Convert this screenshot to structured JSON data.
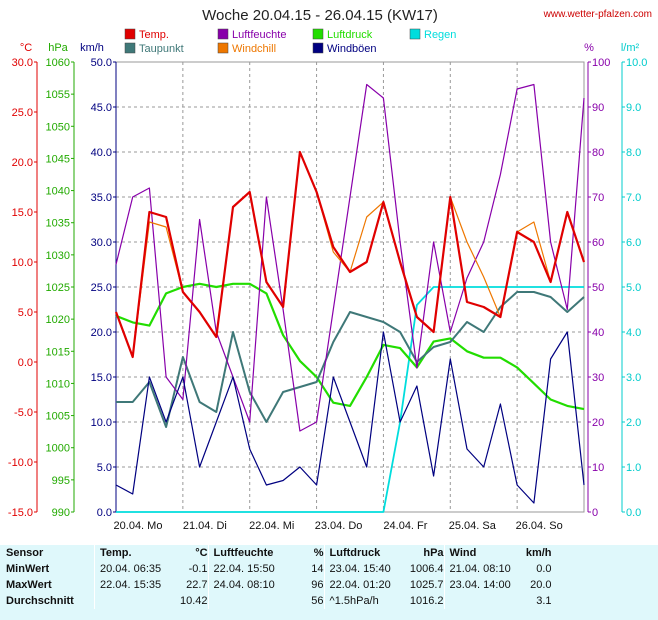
{
  "header": {
    "title": "Woche 20.04.15 - 26.04.15 (KW17)",
    "source": "www.wetter-pfalzen.com"
  },
  "legend": [
    {
      "label": "Temp.",
      "color": "#e00000"
    },
    {
      "label": "Taupunkt",
      "color": "#3f7878"
    },
    {
      "label": "Luftfeuchte",
      "color": "#8800aa"
    },
    {
      "label": "Windchill",
      "color": "#ee7700"
    },
    {
      "label": "Luftdruck",
      "color": "#22dd00"
    },
    {
      "label": "Windböen",
      "color": "#000080"
    },
    {
      "label": "Regen",
      "color": "#00dddd"
    }
  ],
  "axes": {
    "temp": {
      "unit": "°C",
      "color": "#e00000",
      "ticks": [
        "30.0",
        "25.0",
        "20.0",
        "15.0",
        "10.0",
        "5.0",
        "0.0",
        "-5.0",
        "-10.0",
        "-15.0"
      ]
    },
    "pressure": {
      "unit": "hPa",
      "color": "#22aa00",
      "ticks": [
        "1060",
        "1055",
        "1050",
        "1045",
        "1040",
        "1035",
        "1030",
        "1025",
        "1020",
        "1015",
        "1010",
        "1005",
        "1000",
        "995",
        "990"
      ]
    },
    "wind": {
      "unit": "km/h",
      "color": "#000080",
      "ticks": [
        "50.0",
        "45.0",
        "40.0",
        "35.0",
        "30.0",
        "25.0",
        "20.0",
        "15.0",
        "10.0",
        "5.0",
        "0.0"
      ]
    },
    "humidity": {
      "unit": "%",
      "color": "#8800aa",
      "ticks": [
        "100",
        "90",
        "80",
        "70",
        "60",
        "50",
        "40",
        "30",
        "20",
        "10",
        "0"
      ]
    },
    "rain": {
      "unit": "l/m²",
      "color": "#00cccc",
      "ticks": [
        "10.0",
        "9.0",
        "8.0",
        "7.0",
        "6.0",
        "5.0",
        "4.0",
        "3.0",
        "2.0",
        "1.0",
        "0.0"
      ]
    },
    "days": [
      "20.04.  Mo",
      "21.04.  Di",
      "22.04.  Mi",
      "23.04.  Do",
      "24.04.  Fr",
      "25.04.  Sa",
      "26.04.  So"
    ]
  },
  "chart_data": {
    "type": "line",
    "title": "Woche 20.04.15 - 26.04.15 (KW17)",
    "x_unit": "Tag (0 = 20.04. 00:00)",
    "x": [
      0,
      0.25,
      0.5,
      0.75,
      1,
      1.25,
      1.5,
      1.75,
      2,
      2.25,
      2.5,
      2.75,
      3,
      3.25,
      3.5,
      3.75,
      4,
      4.25,
      4.5,
      4.75,
      5,
      5.25,
      5.5,
      5.75,
      6,
      6.25,
      6.5,
      6.75,
      7
    ],
    "series": [
      {
        "name": "Temp.",
        "axis": "°C",
        "ylim": [
          -15,
          30
        ],
        "values": [
          5.0,
          0.5,
          15.0,
          14.5,
          7.0,
          5.0,
          2.5,
          15.5,
          17.0,
          8.0,
          5.5,
          21.0,
          17.0,
          11.5,
          9.0,
          10.0,
          16.0,
          10.0,
          4.5,
          3.0,
          16.5,
          6.0,
          5.5,
          4.5,
          13.0,
          12.0,
          8.0,
          15.0,
          10.0
        ]
      },
      {
        "name": "Taupunkt",
        "axis": "°C",
        "ylim": [
          -15,
          30
        ],
        "values": [
          -4.0,
          -4.0,
          -2.0,
          -6.5,
          0.5,
          -4.0,
          -5.0,
          3.0,
          -3.0,
          -6.0,
          -3.0,
          -2.5,
          -2.0,
          2.0,
          5.0,
          4.5,
          4.0,
          3.0,
          0.0,
          1.5,
          2.0,
          4.0,
          3.0,
          5.5,
          7.0,
          7.0,
          6.5,
          5.0,
          6.5
        ]
      },
      {
        "name": "Luftfeuchte",
        "axis": "%",
        "ylim": [
          0,
          100
        ],
        "values": [
          55,
          70,
          72,
          30,
          25,
          65,
          40,
          30,
          20,
          70,
          45,
          18,
          20,
          45,
          70,
          95,
          92,
          60,
          32,
          60,
          40,
          52,
          60,
          75,
          94,
          95,
          60,
          45,
          92
        ]
      },
      {
        "name": "Windchill",
        "axis": "°C",
        "ylim": [
          -15,
          30
        ],
        "values": [
          5.0,
          0.5,
          14.0,
          13.5,
          7.0,
          5.0,
          2.5,
          15.5,
          17.0,
          8.0,
          5.5,
          21.0,
          17.0,
          11.0,
          9.0,
          14.5,
          16.0,
          10.0,
          4.5,
          3.0,
          16.5,
          12.0,
          8.5,
          4.5,
          13.0,
          14.0,
          8.0,
          15.0,
          10.0
        ]
      },
      {
        "name": "Luftdruck",
        "axis": "hPa",
        "ylim": [
          990,
          1060
        ],
        "values": [
          1020.5,
          1019.5,
          1019.0,
          1024.0,
          1025.0,
          1025.5,
          1025.0,
          1025.5,
          1025.5,
          1024.0,
          1017.5,
          1013.5,
          1011.0,
          1007.0,
          1006.5,
          1011.0,
          1016.0,
          1015.5,
          1012.5,
          1016.5,
          1017.0,
          1015.0,
          1014.0,
          1014.0,
          1012.5,
          1010.0,
          1007.5,
          1006.5,
          1006.0
        ]
      },
      {
        "name": "Windböen",
        "axis": "km/h",
        "ylim": [
          0,
          50
        ],
        "values": [
          3.0,
          2.0,
          15.0,
          10.0,
          15.0,
          5.0,
          10.0,
          15.0,
          7.0,
          3.0,
          3.5,
          5.0,
          3.0,
          15.0,
          10.0,
          5.0,
          20.0,
          10.0,
          14.0,
          4.0,
          17.0,
          7.0,
          5.0,
          12.0,
          3.0,
          1.0,
          17.0,
          20.0,
          3.0
        ]
      },
      {
        "name": "Regen",
        "axis": "l/m²",
        "ylim": [
          0,
          10
        ],
        "values": [
          0,
          0,
          0,
          0,
          0,
          0,
          0,
          0,
          0,
          0,
          0,
          0,
          0,
          0,
          0,
          0,
          0.0,
          2.0,
          4.6,
          5.0,
          5.0,
          5.0,
          5.0,
          5.0,
          5.0,
          5.0,
          5.0,
          5.0,
          5.0
        ]
      }
    ]
  },
  "stats": {
    "head": {
      "sensor": "Sensor",
      "temp": "Temp.",
      "temp_unit": "°C",
      "hum": "Luftfeuchte",
      "hum_unit": "%",
      "press": "Luftdruck",
      "press_unit": "hPa",
      "wind": "Wind",
      "wind_unit": "km/h"
    },
    "rows": [
      {
        "label": "MinWert",
        "t_time": "20.04.  06:35",
        "t_val": "-0.1",
        "h_time": "22.04.  15:50",
        "h_val": "14",
        "p_time": "23.04.  15:40",
        "p_val": "1006.4",
        "w_time": "21.04.  08:10",
        "w_val": "0.0"
      },
      {
        "label": "MaxWert",
        "t_time": "22.04.  15:35",
        "t_val": "22.7",
        "h_time": "24.04.  08:10",
        "h_val": "96",
        "p_time": "22.04.  01:20",
        "p_val": "1025.7",
        "w_time": "23.04.  14:00",
        "w_val": "20.0"
      },
      {
        "label": "Durchschnitt",
        "t_time": "",
        "t_val": "10.42",
        "h_time": "",
        "h_val": "56",
        "p_time": "^1.5hPa/h",
        "p_val": "1016.2",
        "w_time": "",
        "w_val": "3.1"
      }
    ]
  }
}
